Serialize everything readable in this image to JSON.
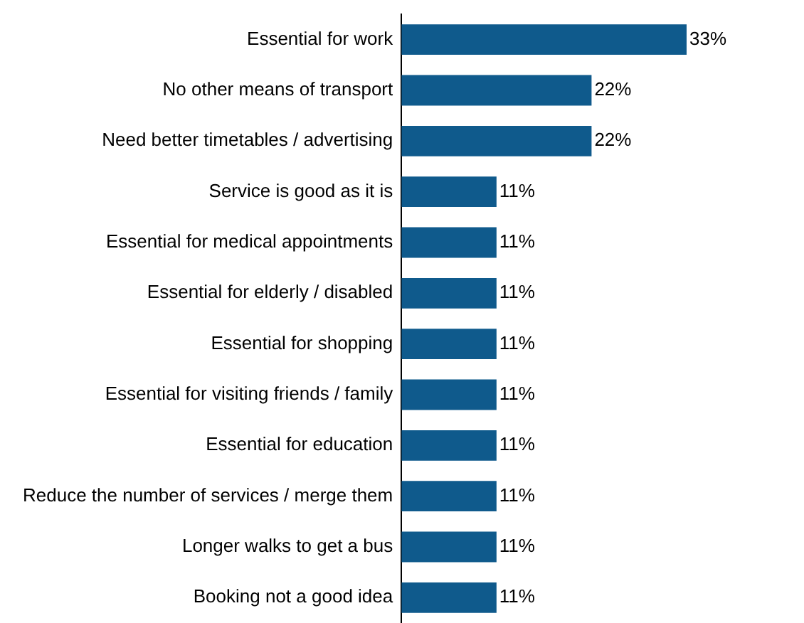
{
  "chart_data": {
    "type": "bar",
    "orientation": "horizontal",
    "color": "#0f5a8c",
    "categories": [
      "Essential for work",
      "No other means of transport",
      "Need better timetables / advertising",
      "Service is good as it is",
      "Essential for medical appointments",
      "Essential for elderly / disabled",
      "Essential for shopping",
      "Essential for visiting friends / family",
      "Essential for education",
      "Reduce the number of services / merge them",
      "Longer walks to get a bus",
      "Booking not a good idea"
    ],
    "values": [
      33,
      22,
      22,
      11,
      11,
      11,
      11,
      11,
      11,
      11,
      11,
      11
    ],
    "value_labels": [
      "33%",
      "22%",
      "22%",
      "11%",
      "11%",
      "11%",
      "11%",
      "11%",
      "11%",
      "11%",
      "11%",
      "11%"
    ],
    "legend": false,
    "tick_labels": "y"
  }
}
